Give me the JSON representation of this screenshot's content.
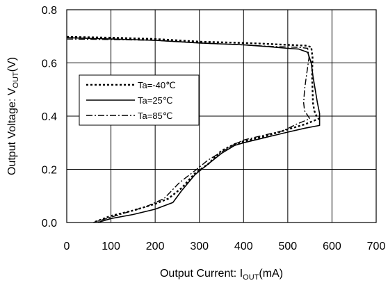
{
  "chart_data": {
    "type": "line",
    "xlabel": "Output Current: I",
    "xlabel_sub": "OUT",
    "xlabel_unit": "(mA)",
    "ylabel": "Output Voltage: V",
    "ylabel_sub": "OUT",
    "ylabel_unit": "(V)",
    "xlim": [
      0,
      700
    ],
    "ylim": [
      0,
      0.8
    ],
    "x_ticks": [
      "0",
      "100",
      "200",
      "300",
      "400",
      "500",
      "600",
      "700"
    ],
    "y_ticks": [
      "0.0",
      "0.2",
      "0.4",
      "0.6",
      "0.8"
    ],
    "grid": true,
    "legend_position": "left-middle",
    "series": [
      {
        "name": "Ta=-40℃",
        "style": "dotted",
        "points": [
          [
            0,
            0.698
          ],
          [
            100,
            0.695
          ],
          [
            200,
            0.69
          ],
          [
            300,
            0.68
          ],
          [
            400,
            0.675
          ],
          [
            450,
            0.672
          ],
          [
            500,
            0.668
          ],
          [
            540,
            0.665
          ],
          [
            553,
            0.66
          ],
          [
            556,
            0.62
          ],
          [
            555,
            0.55
          ],
          [
            557,
            0.45
          ],
          [
            560,
            0.42
          ],
          [
            565,
            0.4
          ],
          [
            570,
            0.39
          ],
          [
            540,
            0.37
          ],
          [
            500,
            0.35
          ],
          [
            450,
            0.325
          ],
          [
            400,
            0.305
          ],
          [
            380,
            0.295
          ],
          [
            350,
            0.27
          ],
          [
            320,
            0.22
          ],
          [
            290,
            0.185
          ],
          [
            260,
            0.13
          ],
          [
            230,
            0.09
          ],
          [
            200,
            0.07
          ],
          [
            150,
            0.045
          ],
          [
            100,
            0.025
          ],
          [
            60,
            0.0
          ]
        ]
      },
      {
        "name": "Ta=25℃",
        "style": "solid",
        "points": [
          [
            0,
            0.695
          ],
          [
            100,
            0.69
          ],
          [
            200,
            0.685
          ],
          [
            300,
            0.675
          ],
          [
            400,
            0.668
          ],
          [
            450,
            0.662
          ],
          [
            500,
            0.655
          ],
          [
            525,
            0.652
          ],
          [
            545,
            0.64
          ],
          [
            553,
            0.6
          ],
          [
            557,
            0.55
          ],
          [
            562,
            0.5
          ],
          [
            567,
            0.45
          ],
          [
            572,
            0.41
          ],
          [
            572,
            0.365
          ],
          [
            540,
            0.355
          ],
          [
            500,
            0.34
          ],
          [
            450,
            0.32
          ],
          [
            400,
            0.3
          ],
          [
            380,
            0.29
          ],
          [
            350,
            0.26
          ],
          [
            320,
            0.22
          ],
          [
            290,
            0.18
          ],
          [
            260,
            0.12
          ],
          [
            240,
            0.075
          ],
          [
            200,
            0.05
          ],
          [
            150,
            0.03
          ],
          [
            100,
            0.015
          ],
          [
            70,
            0.0
          ]
        ]
      },
      {
        "name": "Ta=85℃",
        "style": "dashdot",
        "points": [
          [
            0,
            0.69
          ],
          [
            100,
            0.688
          ],
          [
            200,
            0.685
          ],
          [
            300,
            0.675
          ],
          [
            400,
            0.668
          ],
          [
            450,
            0.663
          ],
          [
            500,
            0.66
          ],
          [
            530,
            0.658
          ],
          [
            545,
            0.655
          ],
          [
            548,
            0.62
          ],
          [
            542,
            0.55
          ],
          [
            538,
            0.5
          ],
          [
            536,
            0.45
          ],
          [
            538,
            0.42
          ],
          [
            550,
            0.39
          ],
          [
            520,
            0.37
          ],
          [
            490,
            0.345
          ],
          [
            450,
            0.33
          ],
          [
            400,
            0.31
          ],
          [
            380,
            0.295
          ],
          [
            360,
            0.275
          ],
          [
            320,
            0.235
          ],
          [
            290,
            0.195
          ],
          [
            255,
            0.15
          ],
          [
            220,
            0.09
          ],
          [
            180,
            0.06
          ],
          [
            130,
            0.035
          ],
          [
            90,
            0.015
          ],
          [
            60,
            0.0
          ]
        ]
      }
    ]
  }
}
